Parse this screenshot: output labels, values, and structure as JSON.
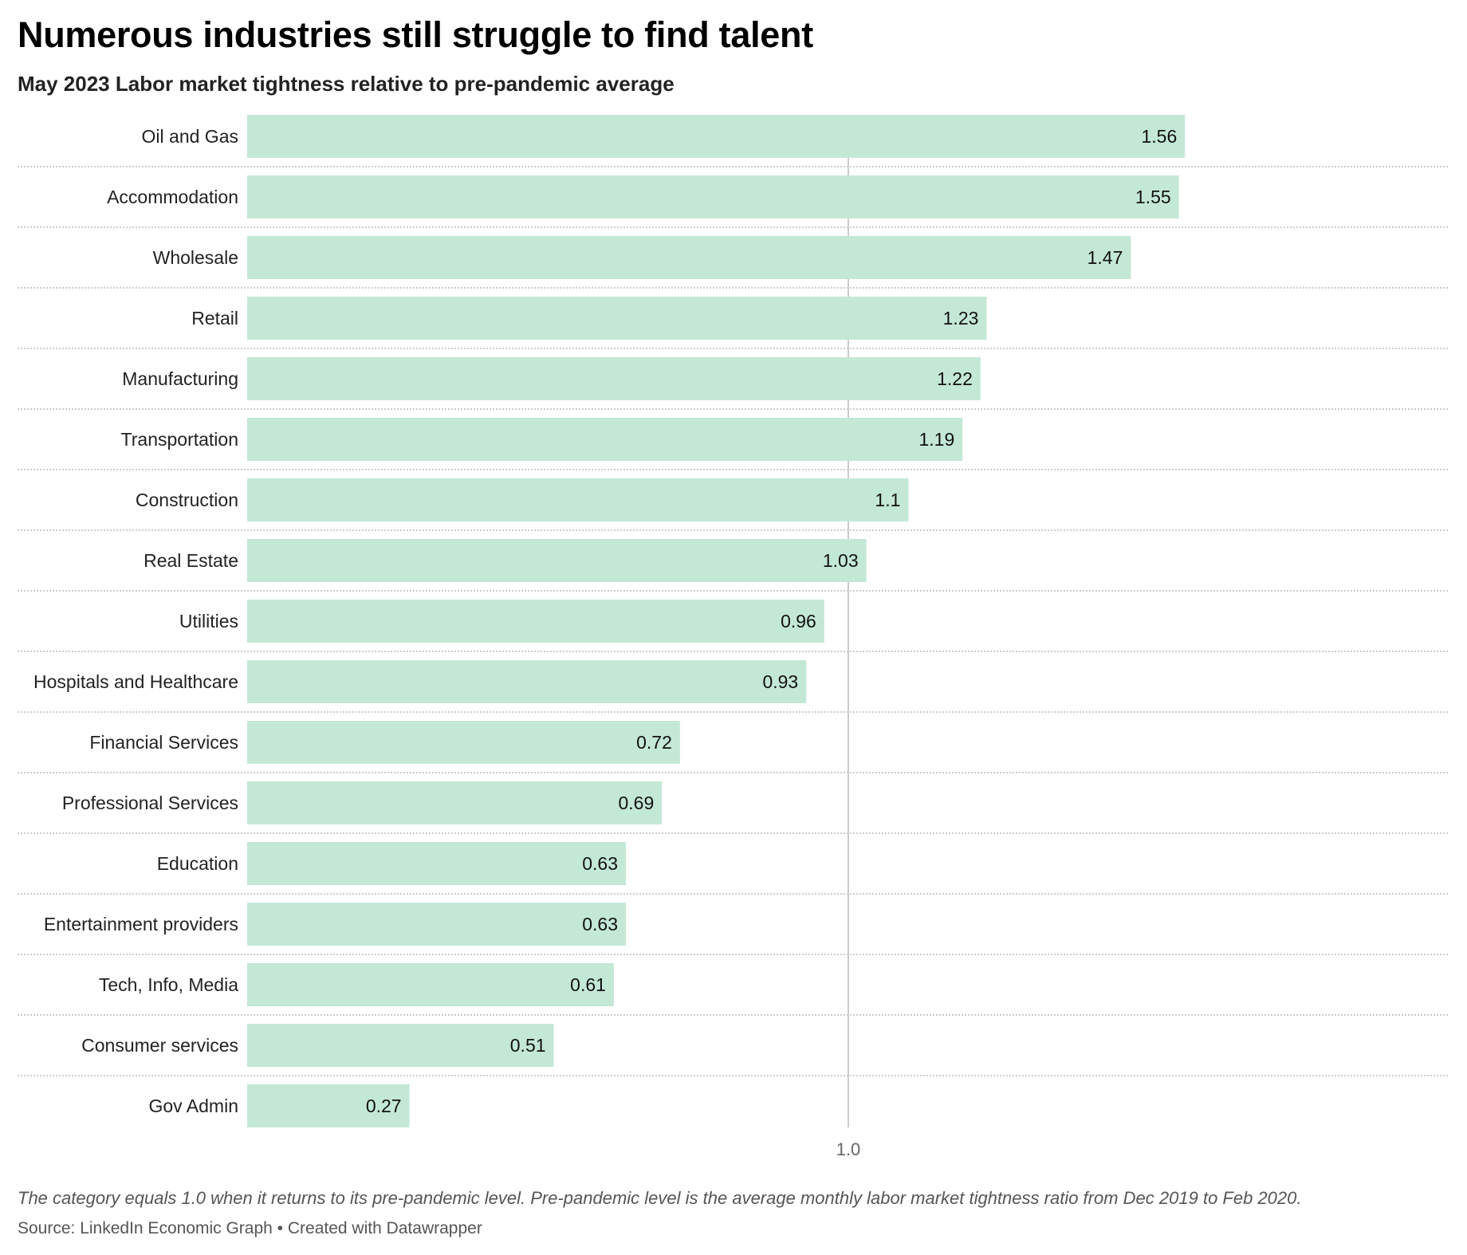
{
  "chart_data": {
    "type": "bar",
    "orientation": "horizontal",
    "title": "Numerous industries still struggle to find talent",
    "subtitle": "May 2023 Labor market tightness relative to pre-pandemic average",
    "categories": [
      "Oil and Gas",
      "Accommodation",
      "Wholesale",
      "Retail",
      "Manufacturing",
      "Transportation",
      "Construction",
      "Real Estate",
      "Utilities",
      "Hospitals and Healthcare",
      "Financial Services",
      "Professional Services",
      "Education",
      "Entertainment providers",
      "Tech, Info, Media",
      "Consumer services",
      "Gov Admin"
    ],
    "values": [
      1.56,
      1.55,
      1.47,
      1.23,
      1.22,
      1.19,
      1.1,
      1.03,
      0.96,
      0.93,
      0.72,
      0.69,
      0.63,
      0.63,
      0.61,
      0.51,
      0.27
    ],
    "value_labels": [
      "1.56",
      "1.55",
      "1.47",
      "1.23",
      "1.22",
      "1.19",
      "1.1",
      "1.03",
      "0.96",
      "0.93",
      "0.72",
      "0.69",
      "0.63",
      "0.63",
      "0.61",
      "0.51",
      "0.27"
    ],
    "xlabel": "",
    "ylabel": "",
    "xlim": [
      0,
      1.79
    ],
    "reference_line": {
      "value": 1.0,
      "label": "1.0"
    },
    "x_ticks": [
      {
        "value": 1.0,
        "label": "1.0"
      }
    ],
    "grid": false,
    "row_separators": "dotted",
    "bar_color": "#c4e8d6",
    "notes": "The category equals 1.0 when it returns to its pre-pandemic level. Pre-pandemic level is the average monthly labor market tightness ratio from Dec 2019 to Feb 2020.",
    "source": "Source: LinkedIn Economic Graph • Created with Datawrapper"
  },
  "colors": {
    "bar": "#c4e8d6",
    "reference_line": "#cccccc",
    "separator": "#cccccc",
    "title": "#000000",
    "text": "#222222",
    "muted": "#555555"
  }
}
